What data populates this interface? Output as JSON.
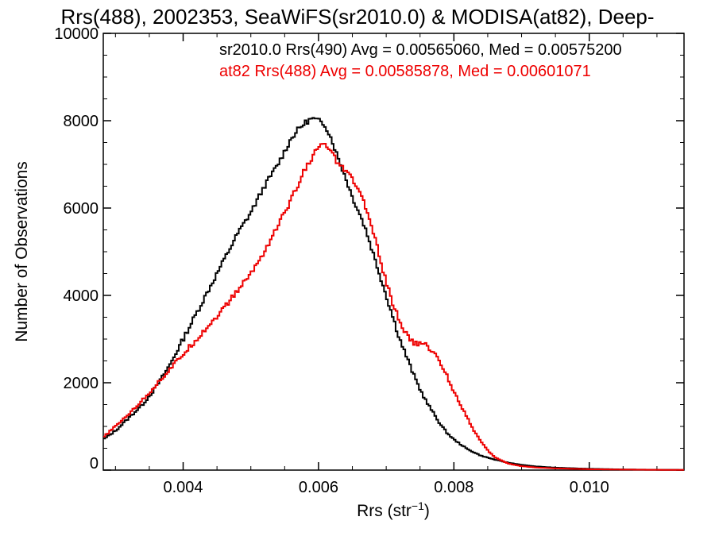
{
  "chart_data": {
    "type": "line",
    "title": "Rrs(488), 2002353, SeaWiFS(sr2010.0) & MODISA(at82), Deep-",
    "xlabel_main": "Rrs (str",
    "xlabel_sup": "−1",
    "xlabel_close": ")",
    "ylabel": "Number of Observations",
    "xlim": [
      0.00282,
      0.0114
    ],
    "ylim": [
      0,
      10000
    ],
    "x_ticks": [
      {
        "value": 0.004,
        "label": "0.004"
      },
      {
        "value": 0.006,
        "label": "0.006"
      },
      {
        "value": 0.008,
        "label": "0.008"
      },
      {
        "value": 0.01,
        "label": "0.010"
      }
    ],
    "y_ticks": [
      {
        "value": 0,
        "label": "0"
      },
      {
        "value": 2000,
        "label": "2000"
      },
      {
        "value": 4000,
        "label": "4000"
      },
      {
        "value": 6000,
        "label": "6000"
      },
      {
        "value": 8000,
        "label": "8000"
      },
      {
        "value": 10000,
        "label": "10000"
      }
    ],
    "legend_placement": "top-right",
    "legend": [
      {
        "text": "sr2010.0 Rrs(490) Avg = 0.00565060, Med = 0.00575200",
        "color": "#000000"
      },
      {
        "text": "at82 Rrs(488) Avg = 0.00585878, Med = 0.00601071",
        "color": "#ee0000"
      }
    ],
    "series": [
      {
        "color": "#000000",
        "x": [
          0.00282,
          0.003,
          0.0032,
          0.0034,
          0.0036,
          0.0038,
          0.004,
          0.0042,
          0.0044,
          0.0046,
          0.0048,
          0.005,
          0.0052,
          0.0054,
          0.0055,
          0.0056,
          0.0057,
          0.0058,
          0.0059,
          0.006,
          0.0061,
          0.0062,
          0.0063,
          0.0064,
          0.0065,
          0.0066,
          0.0067,
          0.0068,
          0.0069,
          0.007,
          0.0071,
          0.0072,
          0.0073,
          0.0074,
          0.0075,
          0.0076,
          0.0077,
          0.0078,
          0.0079,
          0.008,
          0.0082,
          0.0084,
          0.0086,
          0.0088,
          0.009,
          0.0092,
          0.0095,
          0.01,
          0.0105,
          0.011,
          0.0114
        ],
        "y": [
          700,
          900,
          1200,
          1500,
          1900,
          2400,
          3000,
          3600,
          4200,
          4800,
          5400,
          5900,
          6500,
          7000,
          7300,
          7600,
          7800,
          7950,
          8050,
          8000,
          7900,
          7550,
          7100,
          6700,
          6250,
          5900,
          5500,
          5000,
          4500,
          4000,
          3500,
          3000,
          2600,
          2200,
          1850,
          1550,
          1300,
          1050,
          850,
          700,
          480,
          330,
          240,
          170,
          120,
          85,
          55,
          30,
          15,
          8,
          5
        ]
      },
      {
        "color": "#ee0000",
        "x": [
          0.00282,
          0.003,
          0.0032,
          0.0034,
          0.0036,
          0.0038,
          0.004,
          0.0042,
          0.0044,
          0.0046,
          0.0048,
          0.005,
          0.0052,
          0.0054,
          0.0055,
          0.0056,
          0.0057,
          0.0058,
          0.0059,
          0.006,
          0.0061,
          0.0062,
          0.0063,
          0.0064,
          0.0065,
          0.0066,
          0.0067,
          0.0068,
          0.0069,
          0.007,
          0.0071,
          0.0072,
          0.0073,
          0.0074,
          0.0075,
          0.0076,
          0.0077,
          0.0078,
          0.0079,
          0.008,
          0.0081,
          0.0082,
          0.0083,
          0.0084,
          0.0085,
          0.0086,
          0.0088,
          0.009,
          0.0092,
          0.0095,
          0.01,
          0.0105,
          0.011,
          0.0114
        ],
        "y": [
          750,
          1000,
          1300,
          1600,
          1950,
          2300,
          2650,
          3000,
          3350,
          3700,
          4100,
          4500,
          5000,
          5600,
          5900,
          6200,
          6550,
          6900,
          7150,
          7400,
          7450,
          7250,
          7000,
          6850,
          6650,
          6400,
          6000,
          5500,
          4900,
          4300,
          3800,
          3400,
          3100,
          2900,
          2900,
          2850,
          2700,
          2450,
          2150,
          1800,
          1500,
          1200,
          900,
          650,
          450,
          300,
          150,
          90,
          60,
          40,
          20,
          12,
          6,
          4
        ]
      }
    ]
  }
}
